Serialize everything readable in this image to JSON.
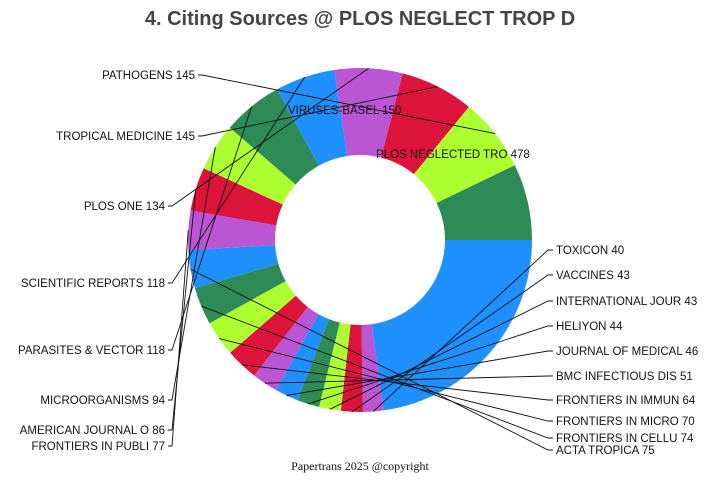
{
  "chart_data": {
    "type": "pie",
    "variant": "donut",
    "title": "4. Citing Sources @ PLOS NEGLECT TROP D",
    "footer": "Papertrans 2025 @copyright",
    "slices": [
      {
        "label": "PLOS NEGLECTED TRO 478",
        "name": "PLOS NEGLECTED TRO",
        "value": 478,
        "color": "#1E90FF"
      },
      {
        "label": "TOXICON 40",
        "name": "TOXICON",
        "value": 40,
        "color": "#BA55D3"
      },
      {
        "label": "VACCINES 43",
        "name": "VACCINES",
        "value": 43,
        "color": "#DC143C"
      },
      {
        "label": "INTERNATIONAL JOUR 43",
        "name": "INTERNATIONAL JOUR",
        "value": 43,
        "color": "#ADFF2F"
      },
      {
        "label": "HELIYON 44",
        "name": "HELIYON",
        "value": 44,
        "color": "#2E8B57"
      },
      {
        "label": "JOURNAL OF MEDICAL 46",
        "name": "JOURNAL OF MEDICAL",
        "value": 46,
        "color": "#1E90FF"
      },
      {
        "label": "BMC INFECTIOUS DIS 51",
        "name": "BMC INFECTIOUS DIS",
        "value": 51,
        "color": "#BA55D3"
      },
      {
        "label": "FRONTIERS IN IMMUN 64",
        "name": "FRONTIERS IN IMMUN",
        "value": 64,
        "color": "#DC143C"
      },
      {
        "label": "FRONTIERS IN MICRO 70",
        "name": "FRONTIERS IN MICRO",
        "value": 70,
        "color": "#ADFF2F"
      },
      {
        "label": "FRONTIERS IN CELLU 74",
        "name": "FRONTIERS IN CELLU",
        "value": 74,
        "color": "#2E8B57"
      },
      {
        "label": "ACTA TROPICA 75",
        "name": "ACTA TROPICA",
        "value": 75,
        "color": "#1E90FF"
      },
      {
        "label": "FRONTIERS IN PUBLI 77",
        "name": "FRONTIERS IN PUBLI",
        "value": 77,
        "color": "#BA55D3"
      },
      {
        "label": "AMERICAN JOURNAL O 86",
        "name": "AMERICAN JOURNAL O",
        "value": 86,
        "color": "#DC143C"
      },
      {
        "label": "MICROORGANISMS 94",
        "name": "MICROORGANISMS",
        "value": 94,
        "color": "#ADFF2F"
      },
      {
        "label": "PARASITES & VECTOR 118",
        "name": "PARASITES & VECTOR",
        "value": 118,
        "color": "#2E8B57"
      },
      {
        "label": "SCIENTIFIC REPORTS 118",
        "name": "SCIENTIFIC REPORTS",
        "value": 118,
        "color": "#1E90FF"
      },
      {
        "label": "PLOS ONE 134",
        "name": "PLOS ONE",
        "value": 134,
        "color": "#BA55D3"
      },
      {
        "label": "TROPICAL MEDICINE  145",
        "name": "TROPICAL MEDICINE",
        "value": 145,
        "color": "#DC143C"
      },
      {
        "label": "PATHOGENS 145",
        "name": "PATHOGENS",
        "value": 145,
        "color": "#ADFF2F"
      },
      {
        "label": "VIRUSES-BASEL 150",
        "name": "VIRUSES-BASEL",
        "value": 150,
        "color": "#2E8B57"
      }
    ]
  }
}
